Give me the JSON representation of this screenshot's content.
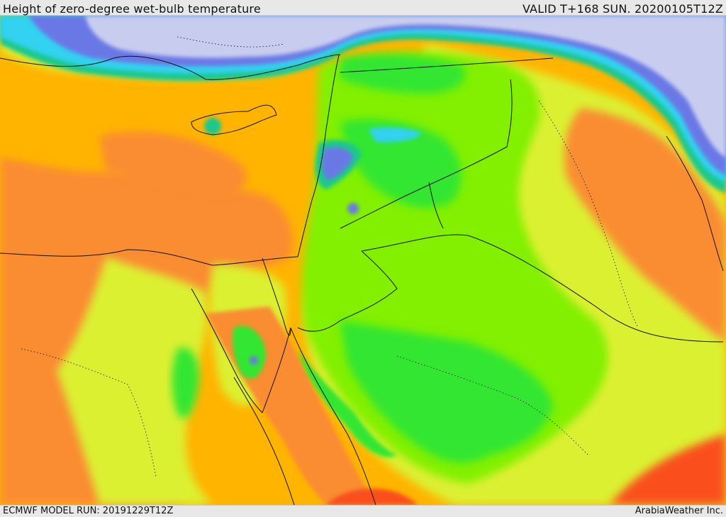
{
  "header": {
    "title": "Height of zero-degree wet-bulb temperature",
    "valid": "VALID T+168 SUN. 20200105T12Z"
  },
  "footer": {
    "model_run": "ECMWF MODEL RUN: 20191229T12Z",
    "credit": "ArabiaWeather Inc."
  },
  "map": {
    "colors": {
      "snow": "#c8cdf0",
      "blue": "#6a78e6",
      "cyan": "#32d2f0",
      "teal": "#1ec88c",
      "green": "#32e632",
      "lime": "#82f000",
      "yellow": "#dcf032",
      "gold": "#ffb400",
      "orange": "#fa8c32",
      "red": "#fa501e",
      "border": "#111111"
    }
  }
}
